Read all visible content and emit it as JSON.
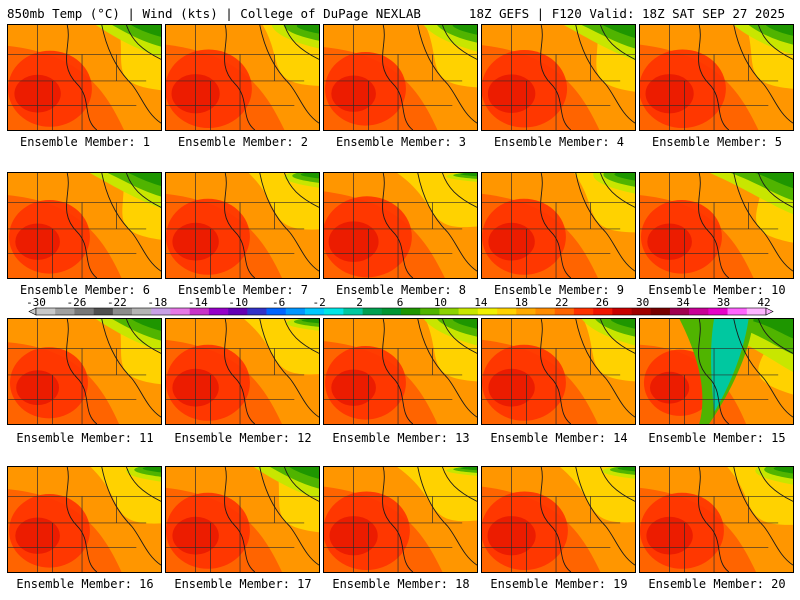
{
  "header": {
    "left": "850mb Temp (°C) | Wind (kts) | College of DuPage NEXLAB",
    "right": "18Z GEFS | F120 Valid: 18Z SAT SEP 27 2025"
  },
  "colorbar": {
    "tick_labels": [
      "-30",
      "-26",
      "-22",
      "-18",
      "-14",
      "-10",
      "-6",
      "-2",
      "2",
      "6",
      "10",
      "14",
      "18",
      "22",
      "26",
      "30",
      "34",
      "38",
      "42"
    ],
    "colors": [
      "#c8c8c8",
      "#a0a0a0",
      "#787878",
      "#505050",
      "#8c8c8c",
      "#b4b4b4",
      "#c8a0e6",
      "#e678e6",
      "#c832c8",
      "#9600c8",
      "#6400b4",
      "#3232c8",
      "#0064ff",
      "#0096ff",
      "#00c8ff",
      "#00e6e6",
      "#00c8a0",
      "#00a050",
      "#009632",
      "#1e9600",
      "#50b400",
      "#8cd200",
      "#c8e600",
      "#f0f000",
      "#ffd200",
      "#ffaa00",
      "#ff8c00",
      "#ff6400",
      "#ff3200",
      "#f01400",
      "#c80000",
      "#a00000",
      "#780000",
      "#a00050",
      "#c80096",
      "#e600c8",
      "#ff64ff",
      "#ffb4ff"
    ]
  },
  "panels": [
    {
      "label": "Ensemble Member: 1",
      "warm": 0.75,
      "cool": 0.55
    },
    {
      "label": "Ensemble Member: 2",
      "warm": 0.8,
      "cool": 0.4
    },
    {
      "label": "Ensemble Member: 3",
      "warm": 0.7,
      "cool": 0.45
    },
    {
      "label": "Ensemble Member: 4",
      "warm": 0.78,
      "cool": 0.6
    },
    {
      "label": "Ensemble Member: 5",
      "warm": 0.8,
      "cool": 0.5
    },
    {
      "label": "Ensemble Member: 6",
      "warm": 0.7,
      "cool": 0.6
    },
    {
      "label": "Ensemble Member: 7",
      "warm": 0.75,
      "cool": 0.25
    },
    {
      "label": "Ensemble Member: 8",
      "warm": 0.85,
      "cool": 0.15
    },
    {
      "label": "Ensemble Member: 9",
      "warm": 0.75,
      "cool": 0.35
    },
    {
      "label": "Ensemble Member: 10",
      "warm": 0.7,
      "cool": 0.7
    },
    {
      "label": "Ensemble Member: 11",
      "warm": 0.65,
      "cool": 0.55
    },
    {
      "label": "Ensemble Member: 12",
      "warm": 0.75,
      "cool": 0.2
    },
    {
      "label": "Ensemble Member: 13",
      "warm": 0.7,
      "cool": 0.45
    },
    {
      "label": "Ensemble Member: 14",
      "warm": 0.75,
      "cool": 0.45
    },
    {
      "label": "Ensemble Member: 15",
      "warm": 0.55,
      "cool": 0.9
    },
    {
      "label": "Ensemble Member: 16",
      "warm": 0.7,
      "cool": 0.25
    },
    {
      "label": "Ensemble Member: 17",
      "warm": 0.75,
      "cool": 0.55
    },
    {
      "label": "Ensemble Member: 18",
      "warm": 0.8,
      "cool": 0.15
    },
    {
      "label": "Ensemble Member: 19",
      "warm": 0.8,
      "cool": 0.2
    },
    {
      "label": "Ensemble Member: 20",
      "warm": 0.75,
      "cool": 0.3
    }
  ]
}
